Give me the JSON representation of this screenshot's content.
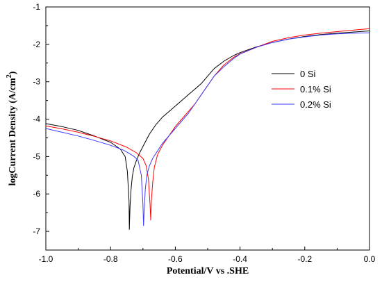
{
  "chart_data": {
    "type": "line",
    "xlabel": "Potential/V vs .SHE",
    "ylabel_main": "logCurrent Density (A/cm",
    "ylabel_sup": "2",
    "ylabel_end": ")",
    "xlim": [
      -1.0,
      0.0
    ],
    "ylim": [
      -7.5,
      -1.0
    ],
    "x_ticks": [
      -1.0,
      -0.8,
      -0.6,
      -0.4,
      -0.2,
      0.0
    ],
    "x_tick_labels": [
      "-1.0",
      "-0.8",
      "-0.6",
      "-0.4",
      "-0.2",
      "0.0"
    ],
    "y_ticks": [
      -7,
      -6,
      -5,
      -4,
      -3,
      -2,
      -1
    ],
    "y_tick_labels": [
      "-7",
      "-6",
      "-5",
      "-4",
      "-3",
      "-2",
      "-1"
    ],
    "grid": false,
    "legend_position": "right",
    "series": [
      {
        "name": "0 Si",
        "color": "#000000",
        "x": [
          -1.0,
          -0.95,
          -0.9,
          -0.85,
          -0.8,
          -0.77,
          -0.755,
          -0.748,
          -0.743,
          -0.742,
          -0.74,
          -0.737,
          -0.733,
          -0.728,
          -0.72,
          -0.71,
          -0.695,
          -0.68,
          -0.66,
          -0.64,
          -0.62,
          -0.6,
          -0.58,
          -0.56,
          -0.54,
          -0.52,
          -0.5,
          -0.48,
          -0.45,
          -0.42,
          -0.4,
          -0.35,
          -0.3,
          -0.25,
          -0.2,
          -0.15,
          -0.1,
          -0.05,
          0.0
        ],
        "y": [
          -4.12,
          -4.2,
          -4.3,
          -4.45,
          -4.62,
          -4.8,
          -5.0,
          -5.4,
          -6.2,
          -6.95,
          -6.35,
          -5.9,
          -5.55,
          -5.3,
          -5.1,
          -4.9,
          -4.65,
          -4.4,
          -4.15,
          -3.95,
          -3.8,
          -3.65,
          -3.5,
          -3.35,
          -3.2,
          -3.05,
          -2.85,
          -2.65,
          -2.45,
          -2.3,
          -2.22,
          -2.07,
          -1.95,
          -1.86,
          -1.79,
          -1.74,
          -1.7,
          -1.67,
          -1.64
        ]
      },
      {
        "name": "0.1% Si",
        "color": "#ff0000",
        "x": [
          -1.0,
          -0.95,
          -0.9,
          -0.85,
          -0.8,
          -0.75,
          -0.72,
          -0.7,
          -0.69,
          -0.683,
          -0.678,
          -0.676,
          -0.674,
          -0.67,
          -0.665,
          -0.655,
          -0.64,
          -0.62,
          -0.6,
          -0.58,
          -0.56,
          -0.54,
          -0.52,
          -0.5,
          -0.48,
          -0.45,
          -0.42,
          -0.4,
          -0.35,
          -0.3,
          -0.25,
          -0.2,
          -0.15,
          -0.1,
          -0.05,
          0.0
        ],
        "y": [
          -4.18,
          -4.26,
          -4.35,
          -4.46,
          -4.58,
          -4.75,
          -4.9,
          -5.05,
          -5.25,
          -5.6,
          -6.3,
          -6.7,
          -6.2,
          -5.7,
          -5.3,
          -4.95,
          -4.7,
          -4.45,
          -4.2,
          -4.0,
          -3.8,
          -3.6,
          -3.35,
          -3.1,
          -2.85,
          -2.55,
          -2.35,
          -2.25,
          -2.08,
          -1.92,
          -1.82,
          -1.75,
          -1.7,
          -1.66,
          -1.62,
          -1.58
        ]
      },
      {
        "name": "0.2% Si",
        "color": "#3a3aff",
        "x": [
          -1.0,
          -0.95,
          -0.9,
          -0.85,
          -0.8,
          -0.76,
          -0.73,
          -0.715,
          -0.705,
          -0.7,
          -0.698,
          -0.696,
          -0.693,
          -0.688,
          -0.68,
          -0.67,
          -0.655,
          -0.64,
          -0.62,
          -0.6,
          -0.58,
          -0.56,
          -0.54,
          -0.52,
          -0.5,
          -0.48,
          -0.45,
          -0.42,
          -0.4,
          -0.35,
          -0.3,
          -0.25,
          -0.2,
          -0.15,
          -0.1,
          -0.05,
          0.0
        ],
        "y": [
          -4.25,
          -4.35,
          -4.45,
          -4.57,
          -4.7,
          -4.83,
          -4.98,
          -5.1,
          -5.5,
          -6.3,
          -6.85,
          -6.4,
          -5.9,
          -5.5,
          -5.25,
          -5.05,
          -4.85,
          -4.65,
          -4.45,
          -4.25,
          -4.05,
          -3.85,
          -3.6,
          -3.35,
          -3.1,
          -2.85,
          -2.6,
          -2.38,
          -2.26,
          -2.08,
          -1.95,
          -1.86,
          -1.8,
          -1.75,
          -1.72,
          -1.7,
          -1.69
        ]
      }
    ]
  }
}
